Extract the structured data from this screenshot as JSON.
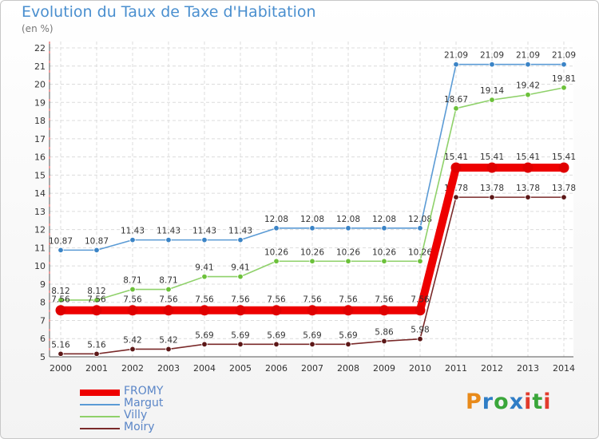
{
  "title": "Evolution du Taux de Taxe d'Habitation",
  "subtitle": "(en %)",
  "logo": "Proxiti",
  "logo_colors": [
    "#e88a1a",
    "#2f7dc6",
    "#3aa63a",
    "#2f7dc6",
    "#e23b2c",
    "#3aa63a",
    "#e23b2c"
  ],
  "chart_data": {
    "type": "line",
    "title": "Evolution du Taux de Taxe d'Habitation",
    "ylabel": "(en %)",
    "xlabel": "",
    "x": [
      "2000",
      "2001",
      "2002",
      "2003",
      "2004",
      "2005",
      "2006",
      "2007",
      "2008",
      "2009",
      "2010",
      "2011",
      "2012",
      "2013",
      "2014"
    ],
    "ylim": [
      5,
      22
    ],
    "yticks": [
      "5",
      "6",
      "7",
      "8",
      "9",
      "10",
      "11",
      "12",
      "13",
      "14",
      "15",
      "16",
      "17",
      "18",
      "19",
      "20",
      "21",
      "22"
    ],
    "legend_position": "bottom-left",
    "series": [
      {
        "name": "Margut",
        "color": "#5b9bd5",
        "dot": "#3b84c6",
        "width": "thin",
        "values": [
          10.87,
          10.87,
          11.43,
          11.43,
          11.43,
          11.43,
          12.08,
          12.08,
          12.08,
          12.08,
          12.08,
          21.09,
          21.09,
          21.09,
          21.09
        ],
        "labels": [
          "10.87",
          "10.87",
          "11.43",
          "11.43",
          "11.43",
          "11.43",
          "12.08",
          "12.08",
          "12.08",
          "12.08",
          "12.08",
          "21.09",
          "21.09",
          "21.09",
          "21.09"
        ]
      },
      {
        "name": "Villy",
        "color": "#8fd16a",
        "dot": "#6cc13a",
        "width": "thin",
        "values": [
          8.12,
          8.12,
          8.71,
          8.71,
          9.41,
          9.41,
          10.26,
          10.26,
          10.26,
          10.26,
          10.26,
          18.67,
          19.14,
          19.42,
          19.81
        ],
        "labels": [
          "8.12",
          "8.12",
          "8.71",
          "8.71",
          "9.41",
          "9.41",
          "10.26",
          "10.26",
          "10.26",
          "10.26",
          "10.26",
          "18.67",
          "19.14",
          "19.42",
          "19.81"
        ]
      },
      {
        "name": "Moiry",
        "color": "#7a2a2a",
        "dot": "#5c1717",
        "width": "thin",
        "values": [
          5.16,
          5.16,
          5.42,
          5.42,
          5.69,
          5.69,
          5.69,
          5.69,
          5.69,
          5.86,
          5.98,
          13.78,
          13.78,
          13.78,
          13.78
        ],
        "labels": [
          "5.16",
          "5.16",
          "5.42",
          "5.42",
          "5.69",
          "5.69",
          "5.69",
          "5.69",
          "5.69",
          "5.86",
          "5.98",
          "13.78",
          "13.78",
          "13.78",
          "13.78"
        ]
      },
      {
        "name": "FROMY",
        "color": "#ee0000",
        "dot": "#e00000",
        "width": "thick",
        "values": [
          7.56,
          7.56,
          7.56,
          7.56,
          7.56,
          7.56,
          7.56,
          7.56,
          7.56,
          7.56,
          7.56,
          15.41,
          15.41,
          15.41,
          15.41
        ],
        "labels": [
          "7.56",
          "7.56",
          "7.56",
          "7.56",
          "7.56",
          "7.56",
          "7.56",
          "7.56",
          "7.56",
          "7.56",
          "7.56",
          "15.41",
          "15.41",
          "15.41",
          "15.41"
        ]
      }
    ],
    "legend": [
      "FROMY",
      "Margut",
      "Villy",
      "Moiry"
    ]
  }
}
